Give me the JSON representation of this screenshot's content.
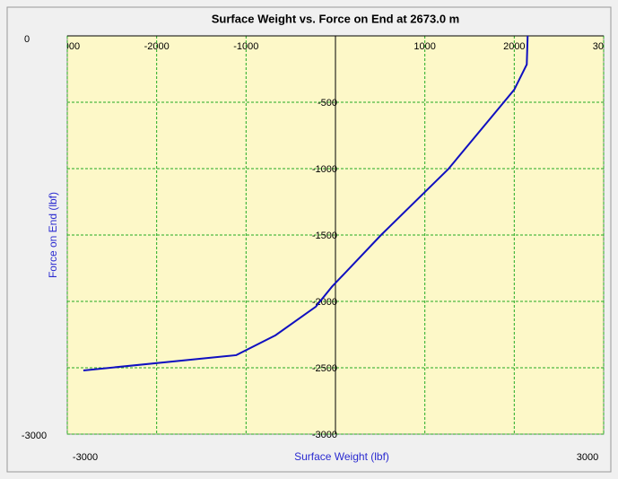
{
  "chart_data": {
    "type": "line",
    "title": "Surface Weight vs. Force on End at 2673.0 m",
    "x_label": "Surface Weight  (lbf)",
    "y_label": "Force on End (lbf)",
    "xlim": [
      -3000,
      3000
    ],
    "ylim": [
      -3000,
      0
    ],
    "xticks": [
      -3000,
      -2000,
      -1000,
      1000,
      2000,
      3000
    ],
    "yticks": [
      -500,
      -1000,
      -1500,
      -2000,
      -2500,
      -3000
    ],
    "grid": true,
    "series": [
      {
        "name": "Force on End",
        "color": "#1010c0",
        "x": [
          -2820,
          -1110,
          -670,
          -220,
          -40,
          510,
          1260,
          2000,
          2140,
          2150
        ],
        "values": [
          -2520,
          -2405,
          -2255,
          -2040,
          -1890,
          -1500,
          -1005,
          -405,
          -215,
          0
        ]
      }
    ]
  }
}
